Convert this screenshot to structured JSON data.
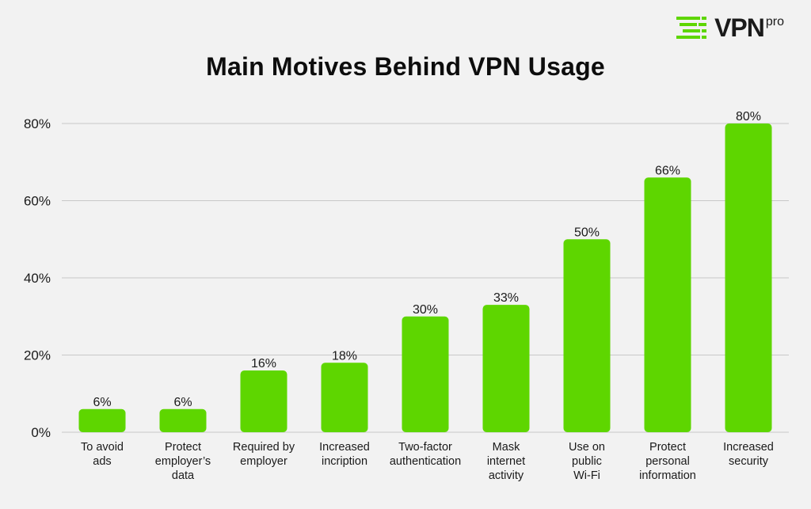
{
  "brand": {
    "name": "VPN",
    "superscript": "pro",
    "accent_color": "#5ed600",
    "icon": "vpnpro-logo-icon"
  },
  "chart_data": {
    "type": "bar",
    "title": "Main Motives Behind VPN Usage",
    "xlabel": "",
    "ylabel": "",
    "categories": [
      "To avoid ads",
      "Protect employer's data",
      "Required by employer",
      "Increased incription",
      "Two-factor authentication",
      "Mask internet activity",
      "Use on public Wi-Fi",
      "Protect personal information",
      "Increased security"
    ],
    "category_lines": [
      [
        "To avoid",
        "ads"
      ],
      [
        "Protect",
        "employer’s",
        "data"
      ],
      [
        "Required by",
        "employer"
      ],
      [
        "Increased",
        "incription"
      ],
      [
        "Two-factor",
        "authentication"
      ],
      [
        "Mask",
        "internet",
        "activity"
      ],
      [
        "Use on",
        "public",
        "Wi-Fi"
      ],
      [
        "Protect",
        "personal",
        "information"
      ],
      [
        "Increased",
        "security"
      ]
    ],
    "values": [
      6,
      6,
      16,
      18,
      30,
      33,
      50,
      66,
      80
    ],
    "value_labels": [
      "6%",
      "6%",
      "16%",
      "18%",
      "30%",
      "33%",
      "50%",
      "66%",
      "80%"
    ],
    "yticks": [
      0,
      20,
      40,
      60,
      80
    ],
    "ytick_labels": [
      "0%",
      "20%",
      "40%",
      "60%",
      "80%"
    ],
    "ylim": [
      0,
      80
    ],
    "grid": true,
    "legend": "none",
    "bar_color": "#5ed600"
  }
}
